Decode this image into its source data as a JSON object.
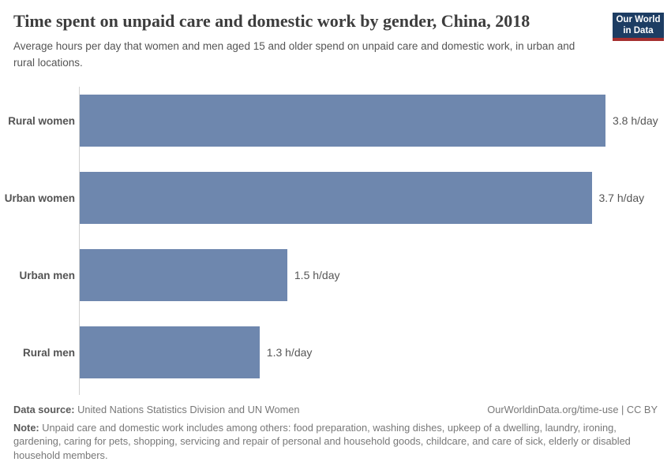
{
  "header": {
    "title": "Time spent on unpaid care and domestic work by gender, China, 2018",
    "subtitle": "Average hours per day that women and men aged 15 and older spend on unpaid care and domestic work, in urban and rural locations.",
    "logo": {
      "line1": "Our World",
      "line2": "in Data"
    }
  },
  "chart_data": {
    "type": "bar",
    "orientation": "horizontal",
    "title": "Time spent on unpaid care and domestic work by gender, China, 2018",
    "categories": [
      "Rural women",
      "Urban women",
      "Urban men",
      "Rural men"
    ],
    "values": [
      3.8,
      3.7,
      1.5,
      1.3
    ],
    "value_labels": [
      "3.8 h/day",
      "3.7 h/day",
      "1.5 h/day",
      "1.3 h/day"
    ],
    "unit": "h/day",
    "xlim": [
      0,
      3.8
    ],
    "grid": false,
    "legend": "none",
    "bar_color": "#6e87ae"
  },
  "footer": {
    "data_source_label": "Data source:",
    "data_source": "United Nations Statistics Division and UN Women",
    "citation": "OurWorldinData.org/time-use | CC BY",
    "note_label": "Note:",
    "note": "Unpaid care and domestic work includes among others: food preparation, washing dishes, upkeep of a dwelling, laundry, ironing, gardening, caring for pets, shopping, servicing and repair of personal and household goods, childcare, and care of sick, elderly or disabled household members."
  },
  "colors": {
    "bar": "#6e87ae",
    "axis_line": "#d0d0d0",
    "logo_background": "#1d3d63",
    "logo_stripe": "#a52f2f"
  }
}
